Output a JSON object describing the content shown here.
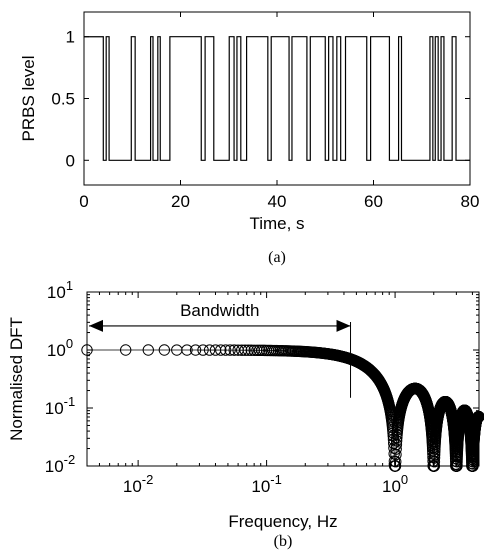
{
  "chart_data": [
    {
      "type": "line",
      "caption": "(a)",
      "xlabel": "Time, s",
      "ylabel": "PRBS level",
      "xlim": [
        0,
        80
      ],
      "ylim": [
        -0.2,
        1.2
      ],
      "xticks": [
        0,
        20,
        40,
        60,
        80
      ],
      "yticks": [
        0,
        0.5,
        1
      ],
      "xticklabels": [
        "0",
        "20",
        "40",
        "60",
        "80"
      ],
      "yticklabels": [
        "0",
        "0.5",
        "1"
      ],
      "grid": false,
      "step": true,
      "x": [
        0,
        4,
        4.6,
        5.2,
        5.9,
        9.8,
        10.6,
        13.8,
        14.3,
        15.3,
        15.8,
        17.8,
        18.7,
        24.3,
        25.1,
        26.9,
        27.5,
        30.1,
        31.1,
        31.7,
        32.5,
        33.7,
        34.7,
        38.1,
        38.8,
        42.5,
        43.1,
        46.2,
        46.9,
        50,
        50.7,
        51.6,
        52.4,
        53.2,
        54.2,
        58.6,
        59.4,
        63.3,
        64.3,
        65.2,
        65.8,
        71.7,
        72.3,
        72.8,
        73.4,
        74,
        74.6,
        76.3,
        77.1,
        80
      ],
      "y": [
        1,
        0,
        1,
        0,
        0,
        1,
        0,
        1,
        0,
        1,
        0,
        1,
        1,
        0,
        1,
        0,
        0,
        1,
        0,
        1,
        0,
        1,
        1,
        0,
        1,
        0,
        1,
        0,
        1,
        0,
        1,
        0,
        1,
        0,
        1,
        0,
        1,
        0,
        0,
        1,
        0,
        1,
        0,
        1,
        0,
        1,
        0,
        1,
        0,
        0
      ]
    },
    {
      "type": "scatter",
      "caption": "(b)",
      "xlabel": "Frequency, Hz",
      "ylabel": "Normalised DFT",
      "xscale": "log",
      "yscale": "log",
      "xlim": [
        0.004,
        4.5
      ],
      "ylim": [
        0.01,
        10
      ],
      "xticks": [
        0.01,
        0.1,
        1
      ],
      "yticks": [
        0.01,
        0.1,
        1,
        10
      ],
      "xtick_base": "10",
      "xtick_exponents": [
        "-2",
        "-1",
        "0"
      ],
      "ytick_base": "10",
      "ytick_exponents": [
        "-2",
        "-1",
        "0",
        "1"
      ],
      "grid": false,
      "marker": "circle",
      "series_rule": "|sinc(pi f / f_c)| with f_c = 1 Hz, f = k * 0.004 Hz",
      "annotation": {
        "label": "Bandwidth",
        "x_start": 0.004,
        "x_end": 0.45,
        "y": 2.6
      }
    }
  ]
}
